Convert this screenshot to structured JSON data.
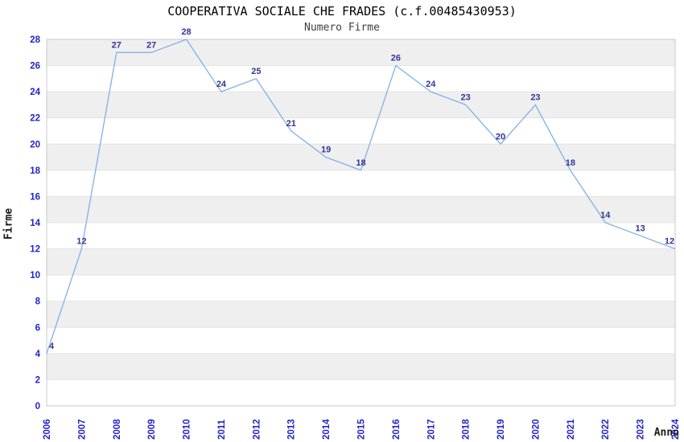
{
  "chart_data": {
    "type": "line",
    "title": "COOPERATIVA SOCIALE CHE FRADES (c.f.00485430953)",
    "subtitle": "Numero Firme",
    "xlabel": "Anno",
    "ylabel": "Firme",
    "x": [
      "2006",
      "2007",
      "2008",
      "2009",
      "2010",
      "2011",
      "2012",
      "2013",
      "2014",
      "2015",
      "2016",
      "2017",
      "2018",
      "2019",
      "2020",
      "2021",
      "2022",
      "2023",
      "2024"
    ],
    "series": [
      {
        "name": "Numero Firme",
        "values": [
          4,
          12,
          27,
          27,
          28,
          24,
          25,
          21,
          19,
          18,
          26,
          24,
          23,
          20,
          23,
          18,
          14,
          13,
          12
        ]
      }
    ],
    "ylim": [
      0,
      28
    ],
    "ytick_step": 2,
    "grid": "horizontal-bands",
    "legend": "none",
    "colors": {
      "line": "#7EB2E6",
      "point_label": "#333399",
      "tick_label": "#2323C8",
      "band": "#EFEFEF",
      "band_alt": "#FFFFFF",
      "gridline": "#E3E3E3",
      "plot_border": "#C9C9C9",
      "title": "#000000",
      "subtitle": "#3F3F3F",
      "axis_title": "#1A1A1A"
    }
  }
}
